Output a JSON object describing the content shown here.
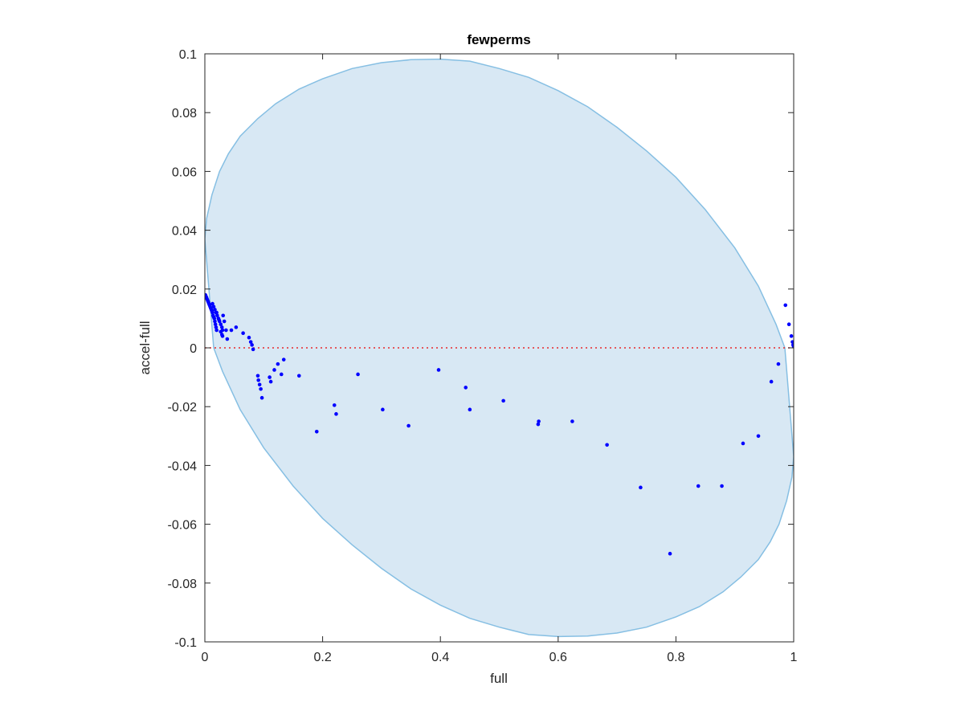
{
  "chart_data": {
    "type": "scatter",
    "title": "fewperms",
    "xlabel": "full",
    "ylabel": "accel-full",
    "xlim": [
      0,
      1
    ],
    "ylim": [
      -0.1,
      0.1
    ],
    "x_ticks": [
      0,
      0.2,
      0.4,
      0.6,
      0.8,
      1
    ],
    "x_tick_labels": [
      "0",
      "0.2",
      "0.4",
      "0.6",
      "0.8",
      "1"
    ],
    "y_ticks": [
      -0.1,
      -0.08,
      -0.06,
      -0.04,
      -0.02,
      0,
      0.02,
      0.04,
      0.06,
      0.08,
      0.1
    ],
    "y_tick_labels": [
      "-0.1",
      "-0.08",
      "-0.06",
      "-0.04",
      "-0.02",
      "0",
      "0.02",
      "0.04",
      "0.06",
      "0.08",
      "0.1"
    ],
    "grid": false,
    "reference_line": {
      "y": 0,
      "style": "dotted",
      "color": "#e8282b"
    },
    "region": {
      "shape": "ellipse",
      "fill": "#d8e8f4",
      "edge": "#86bfe3",
      "outline": [
        [
          0,
          0.037
        ],
        [
          0.003,
          0.044
        ],
        [
          0.012,
          0.052
        ],
        [
          0.025,
          0.06
        ],
        [
          0.04,
          0.066
        ],
        [
          0.06,
          0.072
        ],
        [
          0.09,
          0.078
        ],
        [
          0.12,
          0.083
        ],
        [
          0.16,
          0.088
        ],
        [
          0.2,
          0.0915
        ],
        [
          0.25,
          0.095
        ],
        [
          0.3,
          0.097
        ],
        [
          0.35,
          0.098
        ],
        [
          0.4,
          0.0982
        ],
        [
          0.45,
          0.0975
        ],
        [
          0.5,
          0.095
        ],
        [
          0.55,
          0.092
        ],
        [
          0.6,
          0.0875
        ],
        [
          0.65,
          0.082
        ],
        [
          0.7,
          0.075
        ],
        [
          0.75,
          0.067
        ],
        [
          0.8,
          0.058
        ],
        [
          0.85,
          0.047
        ],
        [
          0.9,
          0.034
        ],
        [
          0.94,
          0.021
        ],
        [
          0.97,
          0.008
        ],
        [
          0.985,
          0
        ],
        [
          1,
          -0.037
        ],
        [
          0.997,
          -0.044
        ],
        [
          0.988,
          -0.052
        ],
        [
          0.975,
          -0.06
        ],
        [
          0.96,
          -0.066
        ],
        [
          0.94,
          -0.072
        ],
        [
          0.91,
          -0.078
        ],
        [
          0.88,
          -0.083
        ],
        [
          0.84,
          -0.088
        ],
        [
          0.8,
          -0.0915
        ],
        [
          0.75,
          -0.095
        ],
        [
          0.7,
          -0.097
        ],
        [
          0.65,
          -0.098
        ],
        [
          0.6,
          -0.0982
        ],
        [
          0.55,
          -0.0975
        ],
        [
          0.5,
          -0.095
        ],
        [
          0.45,
          -0.092
        ],
        [
          0.4,
          -0.0875
        ],
        [
          0.35,
          -0.082
        ],
        [
          0.3,
          -0.075
        ],
        [
          0.25,
          -0.067
        ],
        [
          0.2,
          -0.058
        ],
        [
          0.15,
          -0.047
        ],
        [
          0.1,
          -0.034
        ],
        [
          0.06,
          -0.021
        ],
        [
          0.03,
          -0.008
        ],
        [
          0.015,
          0
        ]
      ]
    },
    "series": [
      {
        "color": "#0000ff",
        "points": [
          [
            0.001,
            0.018
          ],
          [
            0.002,
            0.0175
          ],
          [
            0.003,
            0.017
          ],
          [
            0.004,
            0.0165
          ],
          [
            0.005,
            0.016
          ],
          [
            0.006,
            0.0155
          ],
          [
            0.007,
            0.015
          ],
          [
            0.008,
            0.0145
          ],
          [
            0.009,
            0.014
          ],
          [
            0.01,
            0.0135
          ],
          [
            0.011,
            0.013
          ],
          [
            0.012,
            0.0125
          ],
          [
            0.013,
            0.012
          ],
          [
            0.014,
            0.011
          ],
          [
            0.015,
            0.0105
          ],
          [
            0.016,
            0.01
          ],
          [
            0.017,
            0.009
          ],
          [
            0.018,
            0.008
          ],
          [
            0.019,
            0.007
          ],
          [
            0.02,
            0.006
          ],
          [
            0.013,
            0.015
          ],
          [
            0.015,
            0.014
          ],
          [
            0.017,
            0.013
          ],
          [
            0.019,
            0.012
          ],
          [
            0.021,
            0.011
          ],
          [
            0.023,
            0.01
          ],
          [
            0.025,
            0.009
          ],
          [
            0.027,
            0.008
          ],
          [
            0.029,
            0.007
          ],
          [
            0.03,
            0.006
          ],
          [
            0.02,
            0.012
          ],
          [
            0.024,
            0.0095
          ],
          [
            0.027,
            0.0055
          ],
          [
            0.029,
            0.0045
          ],
          [
            0.03,
            0.004
          ],
          [
            0.031,
            0.011
          ],
          [
            0.033,
            0.009
          ],
          [
            0.036,
            0.006
          ],
          [
            0.038,
            0.003
          ],
          [
            0.045,
            0.006
          ],
          [
            0.053,
            0.007
          ],
          [
            0.065,
            0.005
          ],
          [
            0.075,
            0.0035
          ],
          [
            0.078,
            0.002
          ],
          [
            0.08,
            0.001
          ],
          [
            0.082,
            -0.0005
          ],
          [
            0.09,
            -0.0095
          ],
          [
            0.091,
            -0.011
          ],
          [
            0.093,
            -0.0125
          ],
          [
            0.095,
            -0.014
          ],
          [
            0.097,
            -0.017
          ],
          [
            0.11,
            -0.01
          ],
          [
            0.112,
            -0.0115
          ],
          [
            0.118,
            -0.0075
          ],
          [
            0.124,
            -0.0055
          ],
          [
            0.13,
            -0.009
          ],
          [
            0.134,
            -0.004
          ],
          [
            0.16,
            -0.0095
          ],
          [
            0.19,
            -0.0285
          ],
          [
            0.22,
            -0.0195
          ],
          [
            0.223,
            -0.0225
          ],
          [
            0.26,
            -0.009
          ],
          [
            0.302,
            -0.021
          ],
          [
            0.346,
            -0.0265
          ],
          [
            0.397,
            -0.0075
          ],
          [
            0.443,
            -0.0135
          ],
          [
            0.45,
            -0.021
          ],
          [
            0.507,
            -0.018
          ],
          [
            0.566,
            -0.026
          ],
          [
            0.567,
            -0.025
          ],
          [
            0.624,
            -0.025
          ],
          [
            0.683,
            -0.033
          ],
          [
            0.74,
            -0.0475
          ],
          [
            0.79,
            -0.07
          ],
          [
            0.838,
            -0.047
          ],
          [
            0.878,
            -0.047
          ],
          [
            0.914,
            -0.0325
          ],
          [
            0.94,
            -0.03
          ],
          [
            0.962,
            -0.0115
          ],
          [
            0.974,
            -0.0055
          ],
          [
            0.986,
            0.0145
          ],
          [
            0.992,
            0.008
          ],
          [
            0.996,
            0.004
          ],
          [
            0.998,
            0.002
          ],
          [
            0.999,
            0.001
          ],
          [
            1.0,
            0.0005
          ]
        ]
      }
    ]
  }
}
